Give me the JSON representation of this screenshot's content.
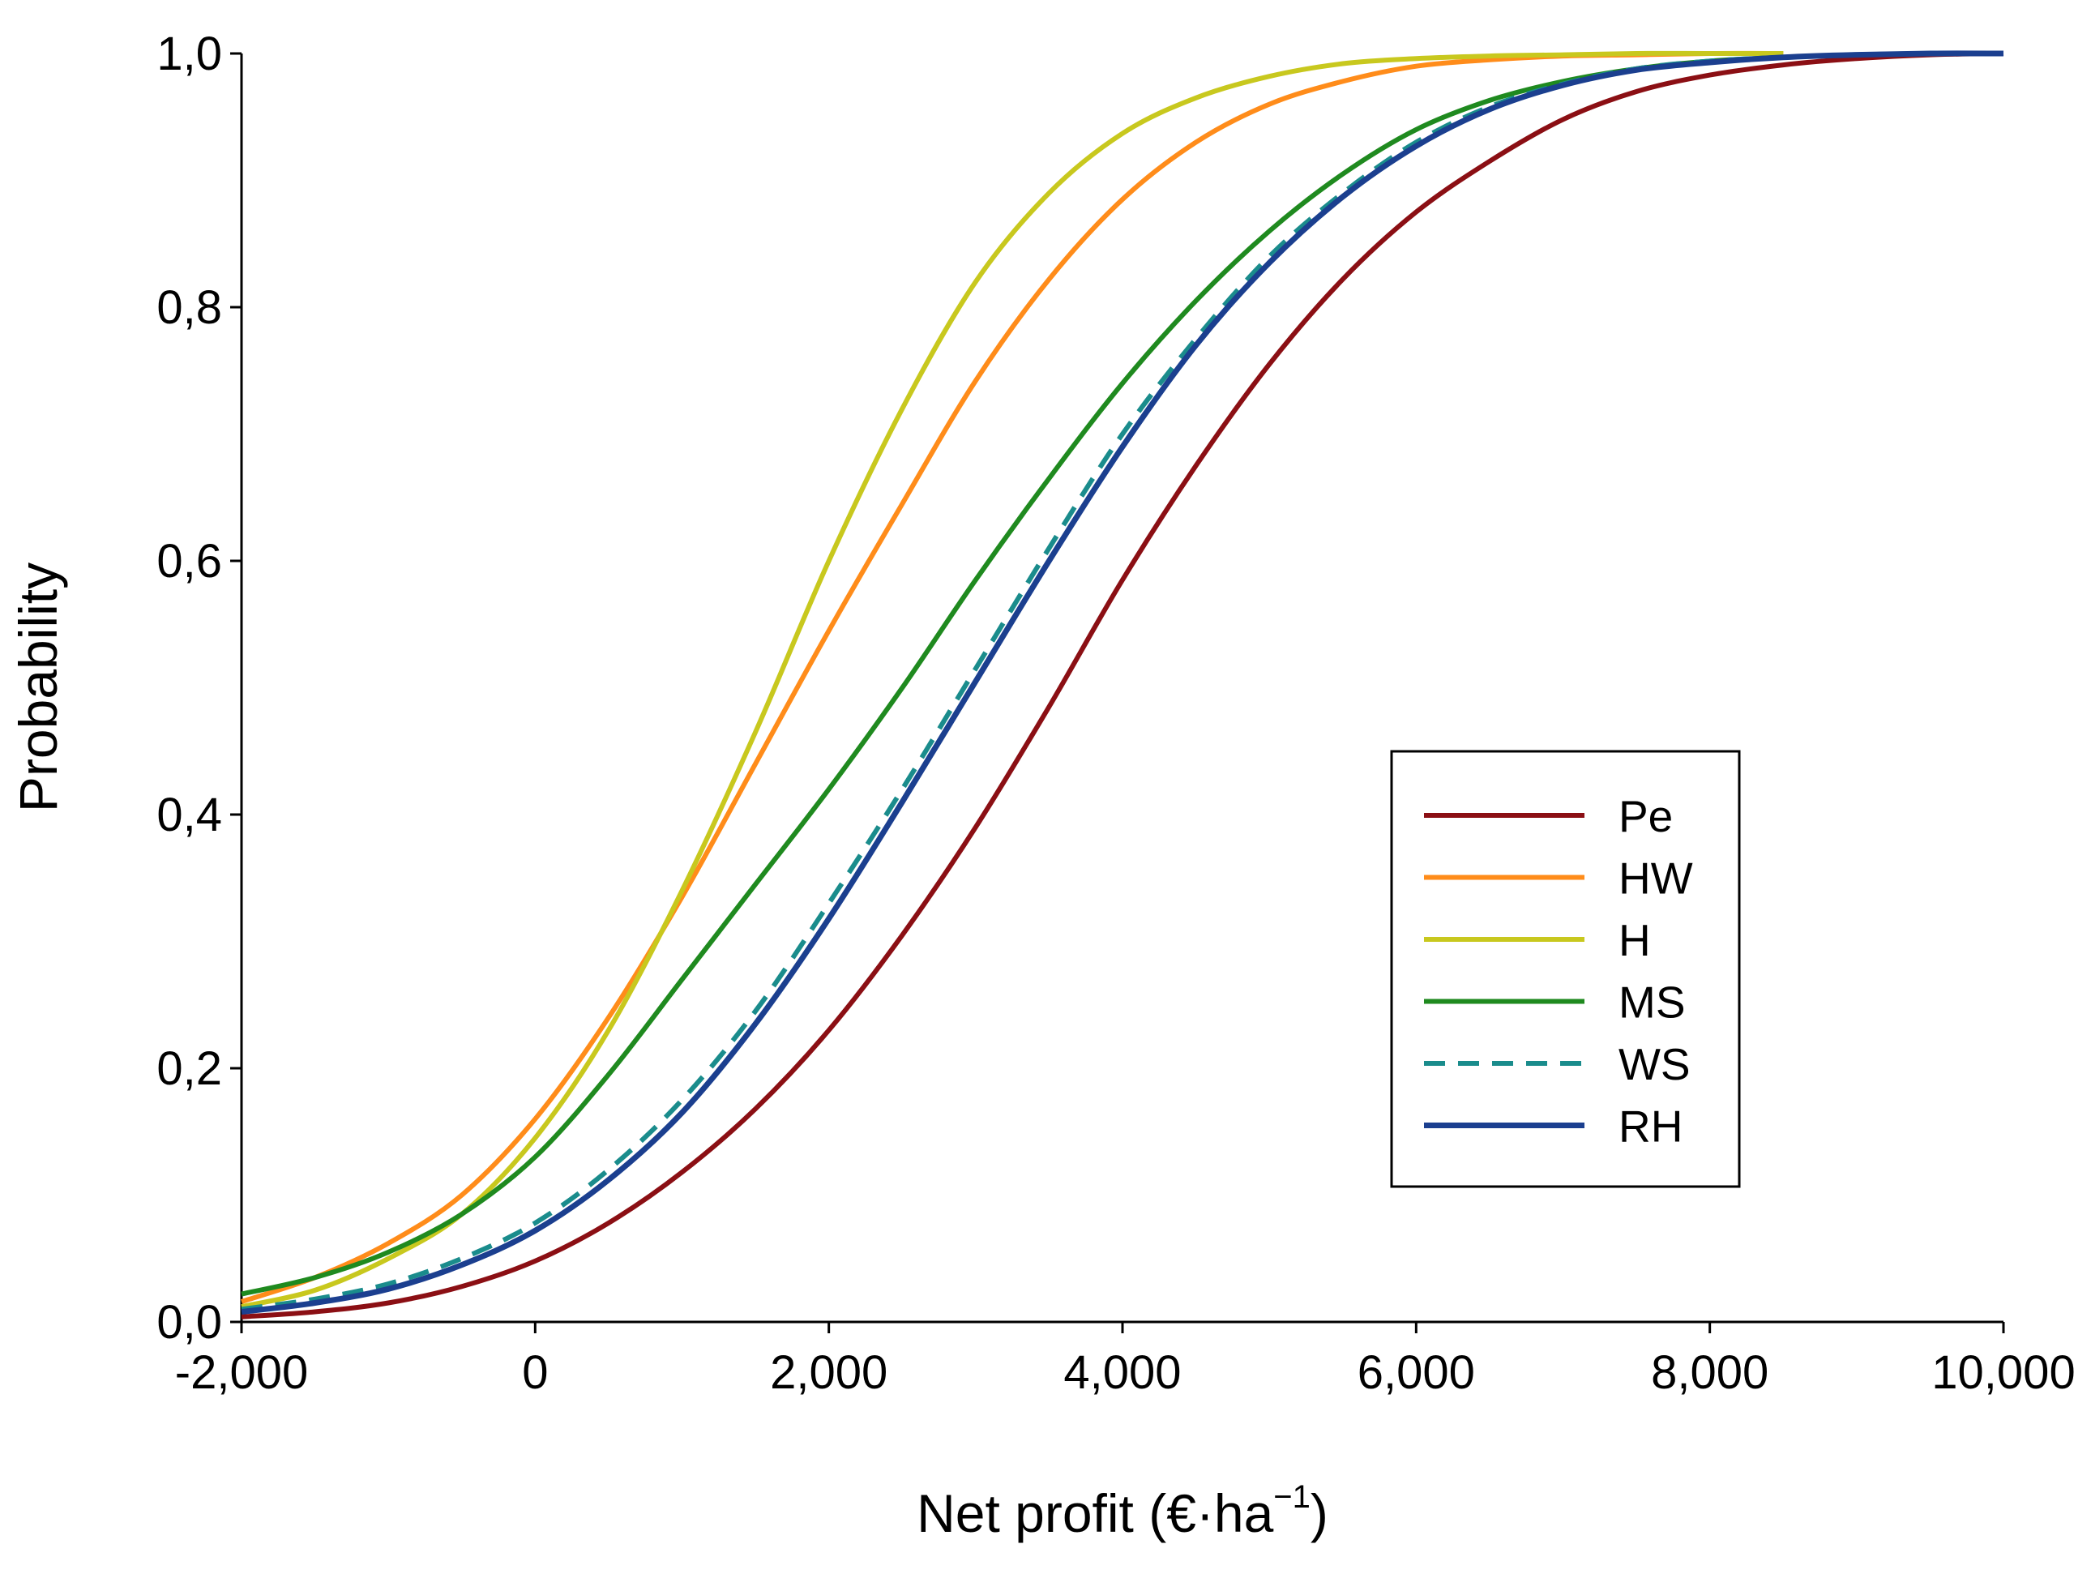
{
  "chart_data": {
    "type": "line",
    "title": "",
    "xlabel": {
      "main": "Net profit (€·ha",
      "sup": "−1",
      "close": ")"
    },
    "ylabel": "Probability",
    "xlim": [
      -2000,
      10000
    ],
    "ylim": [
      0,
      1
    ],
    "x_ticks": [
      -2000,
      0,
      2000,
      4000,
      6000,
      8000,
      10000
    ],
    "x_tick_labels": [
      "-2,000",
      "0",
      "2,000",
      "4,000",
      "6,000",
      "8,000",
      "10,000"
    ],
    "y_ticks": [
      0,
      0.2,
      0.4,
      0.6,
      0.8,
      1.0
    ],
    "y_tick_labels": [
      "0,0",
      "0,2",
      "0,4",
      "0,6",
      "0,8",
      "1,0"
    ],
    "grid": false,
    "legend_position": "center-right",
    "series": [
      {
        "name": "Pe",
        "color": "#8B0F14",
        "dash": "solid",
        "x": [
          -2000,
          -1500,
          -1000,
          -500,
          0,
          500,
          1000,
          1500,
          2000,
          2500,
          3000,
          3500,
          4000,
          4500,
          5000,
          5500,
          6000,
          6500,
          7000,
          7500,
          8000,
          8500,
          9000,
          9500,
          10000
        ],
        "y": [
          0.004,
          0.008,
          0.015,
          0.028,
          0.048,
          0.078,
          0.118,
          0.168,
          0.23,
          0.305,
          0.39,
          0.485,
          0.585,
          0.675,
          0.755,
          0.822,
          0.875,
          0.915,
          0.948,
          0.97,
          0.983,
          0.991,
          0.996,
          0.999,
          1.0
        ]
      },
      {
        "name": "HW",
        "color": "#FF8C1A",
        "dash": "solid",
        "x": [
          -2000,
          -1500,
          -1000,
          -500,
          0,
          500,
          1000,
          1500,
          2000,
          2500,
          3000,
          3500,
          4000,
          4500,
          5000,
          5500,
          6000,
          6500,
          7000,
          7500,
          8000,
          8500
        ],
        "y": [
          0.016,
          0.035,
          0.062,
          0.1,
          0.16,
          0.24,
          0.335,
          0.44,
          0.545,
          0.645,
          0.742,
          0.822,
          0.885,
          0.93,
          0.96,
          0.978,
          0.99,
          0.995,
          0.998,
          0.999,
          1.0,
          1.0
        ]
      },
      {
        "name": "H",
        "color": "#C8C81E",
        "dash": "solid",
        "x": [
          -2000,
          -1500,
          -1000,
          -500,
          0,
          500,
          1000,
          1500,
          2000,
          2500,
          3000,
          3500,
          4000,
          4500,
          5000,
          5500,
          6000,
          6500,
          7000,
          7500,
          8000,
          8500
        ],
        "y": [
          0.012,
          0.025,
          0.05,
          0.085,
          0.145,
          0.23,
          0.34,
          0.465,
          0.6,
          0.72,
          0.82,
          0.89,
          0.937,
          0.965,
          0.982,
          0.992,
          0.996,
          0.998,
          0.999,
          1.0,
          1.0,
          1.0
        ]
      },
      {
        "name": "MS",
        "color": "#1F8A1F",
        "dash": "solid",
        "x": [
          -2000,
          -1500,
          -1000,
          -500,
          0,
          500,
          1000,
          1500,
          2000,
          2500,
          3000,
          3500,
          4000,
          4500,
          5000,
          5500,
          6000,
          6500,
          7000,
          7500,
          8000,
          8500,
          9000,
          9500,
          10000
        ],
        "y": [
          0.022,
          0.035,
          0.055,
          0.085,
          0.13,
          0.195,
          0.27,
          0.345,
          0.42,
          0.5,
          0.585,
          0.665,
          0.74,
          0.805,
          0.86,
          0.905,
          0.94,
          0.963,
          0.978,
          0.988,
          0.994,
          0.997,
          0.999,
          1.0,
          1.0
        ]
      },
      {
        "name": "WS",
        "color": "#1A8C8C",
        "dash": "dashed",
        "x": [
          -2000,
          -1500,
          -1000,
          -500,
          0,
          500,
          1000,
          1500,
          2000,
          2500,
          3000,
          3500,
          4000,
          4500,
          5000,
          5500,
          6000,
          6500,
          7000,
          7500,
          8000,
          8500,
          9000,
          9500,
          10000
        ],
        "y": [
          0.01,
          0.018,
          0.03,
          0.05,
          0.078,
          0.12,
          0.175,
          0.245,
          0.33,
          0.42,
          0.515,
          0.61,
          0.7,
          0.775,
          0.84,
          0.89,
          0.93,
          0.958,
          0.976,
          0.988,
          0.994,
          0.997,
          0.999,
          1.0,
          1.0
        ]
      },
      {
        "name": "RH",
        "color": "#1B3F8F",
        "dash": "solid",
        "x": [
          -2000,
          -1500,
          -1000,
          -500,
          0,
          500,
          1000,
          1500,
          2000,
          2500,
          3000,
          3500,
          4000,
          4500,
          5000,
          5500,
          6000,
          6500,
          7000,
          7500,
          8000,
          8500,
          9000,
          9500,
          10000
        ],
        "y": [
          0.008,
          0.015,
          0.026,
          0.045,
          0.072,
          0.112,
          0.165,
          0.235,
          0.318,
          0.41,
          0.505,
          0.6,
          0.69,
          0.77,
          0.835,
          0.887,
          0.927,
          0.956,
          0.975,
          0.987,
          0.993,
          0.997,
          0.999,
          1.0,
          1.0
        ]
      }
    ]
  }
}
